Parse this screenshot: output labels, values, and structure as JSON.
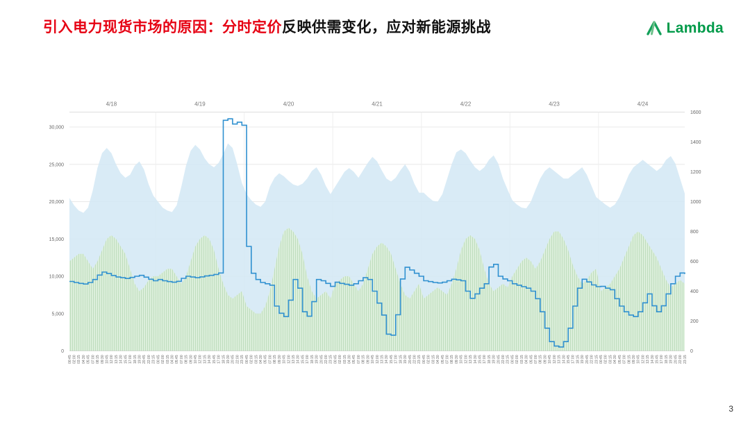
{
  "header": {
    "title_red": "引入电力现货市场的原因：分时定价",
    "title_rest": "反映供需变化，应对新能源挑战",
    "logo_text": "Lambda"
  },
  "footer": {
    "page_number": "3"
  },
  "colors": {
    "title_red": "#e60012",
    "brand_green": "#009a49",
    "price_line": "#2f90d0",
    "area_blue": "#d2e7f4",
    "area_green": "#d9edd6",
    "grid": "#e8e8e8"
  },
  "chart_data": {
    "type": "mixed",
    "title": "",
    "days": [
      "4/18",
      "4/19",
      "4/20",
      "4/21",
      "4/22",
      "4/23",
      "4/24"
    ],
    "time_ticks_per_day": [
      "00:45",
      "02:00",
      "03:15",
      "04:30",
      "05:45",
      "07:00",
      "08:15",
      "09:30",
      "10:45",
      "12:00",
      "13:15",
      "14:30",
      "15:45",
      "17:00",
      "18:15",
      "19:30",
      "20:45",
      "22:00",
      "23:15"
    ],
    "y_left": {
      "min": 0,
      "max": 32000,
      "ticks": [
        0,
        5000,
        10000,
        15000,
        20000,
        25000,
        30000
      ],
      "labels": [
        "0",
        "5,000",
        "10,000",
        "15,000",
        "20,000",
        "25,000",
        "30,000"
      ]
    },
    "y_right": {
      "min": 0,
      "max": 1600,
      "ticks": [
        0,
        200,
        400,
        600,
        800,
        1000,
        1200,
        1400,
        1600
      ],
      "labels": [
        "0",
        "200",
        "400",
        "600",
        "800",
        "1000",
        "1200",
        "1400",
        "1600"
      ]
    },
    "grid": true,
    "legend": "none",
    "series": [
      {
        "name": "load-area-blue",
        "type": "area",
        "axis": "left",
        "color": "#d2e7f4",
        "opacity": 0.85,
        "values_by_day": [
          [
            20500,
            19500,
            18800,
            18500,
            19200,
            21500,
            24500,
            26500,
            27200,
            26500,
            25000,
            23800,
            23200,
            23600,
            24800,
            25400,
            24300,
            22300,
            20800
          ],
          [
            20000,
            19200,
            18800,
            18600,
            19500,
            22000,
            24800,
            26800,
            27600,
            27000,
            25800,
            25000,
            24600,
            25200,
            26400,
            27800,
            27200,
            25000,
            22500
          ],
          [
            21000,
            20200,
            19600,
            19300,
            20000,
            22000,
            23200,
            23800,
            23400,
            22800,
            22300,
            22100,
            22400,
            23100,
            24100,
            24600,
            23600,
            22100,
            21000
          ],
          [
            22000,
            23000,
            24000,
            24500,
            24000,
            23200,
            24200,
            25200,
            26000,
            25400,
            24200,
            23100,
            22700,
            23200,
            24200,
            25000,
            24000,
            22400,
            21200
          ],
          [
            21200,
            20600,
            20100,
            20000,
            21000,
            23000,
            25000,
            26600,
            27000,
            26500,
            25500,
            24600,
            24100,
            24600,
            25600,
            26200,
            25100,
            23100,
            21600
          ],
          [
            20200,
            19600,
            19200,
            19100,
            20000,
            21600,
            23100,
            24100,
            24600,
            24100,
            23600,
            23100,
            23100,
            23600,
            24100,
            24600,
            23600,
            22100,
            20600
          ],
          [
            20100,
            19600,
            19200,
            19600,
            20600,
            22100,
            23600,
            24600,
            25100,
            25600,
            25100,
            24600,
            24100,
            24600,
            25600,
            26100,
            25100,
            23100,
            21100
          ]
        ]
      },
      {
        "name": "renewable-area-green",
        "type": "area",
        "axis": "left",
        "color": "#d9edd6",
        "opacity": 0.9,
        "texture": "stripes",
        "values_by_day": [
          [
            12000,
            12500,
            13000,
            13000,
            12000,
            11000,
            12000,
            13500,
            15000,
            15500,
            15000,
            14000,
            13000,
            11000,
            9000,
            8000,
            8500,
            9500,
            10000
          ],
          [
            10000,
            10500,
            11000,
            11000,
            10000,
            9000,
            10000,
            12000,
            14000,
            15000,
            15500,
            15000,
            13500,
            11000,
            9000,
            7500,
            7000,
            7500,
            8000
          ],
          [
            6000,
            5500,
            5000,
            5000,
            6000,
            8000,
            11000,
            14000,
            16000,
            16500,
            16000,
            15000,
            13000,
            10000,
            8000,
            7000,
            7500,
            8000,
            7000
          ],
          [
            9000,
            9500,
            10000,
            10000,
            9000,
            8000,
            9000,
            11000,
            13000,
            14000,
            14500,
            14000,
            13000,
            11000,
            9000,
            7500,
            7000,
            8000,
            9000
          ],
          [
            7000,
            7500,
            8000,
            8500,
            8000,
            7500,
            9000,
            11000,
            13500,
            15000,
            15500,
            15000,
            13500,
            11000,
            9000,
            8000,
            8500,
            9000,
            8500
          ],
          [
            10000,
            11000,
            12000,
            12500,
            12000,
            11000,
            12000,
            13500,
            15000,
            16000,
            16000,
            15000,
            13500,
            11500,
            10000,
            9000,
            9500,
            10500,
            11000
          ],
          [
            8000,
            8500,
            9000,
            10000,
            11000,
            12500,
            14000,
            15500,
            16000,
            15500,
            14500,
            13500,
            12500,
            11000,
            9500,
            8500,
            9000,
            9500,
            9000
          ]
        ]
      },
      {
        "name": "price-step-line",
        "type": "step",
        "axis": "right",
        "color": "#2f90d0",
        "opacity": 1,
        "values_by_day": [
          [
            465,
            458,
            452,
            448,
            458,
            478,
            508,
            528,
            518,
            505,
            495,
            490,
            485,
            492,
            500,
            506,
            494,
            480,
            470
          ],
          [
            478,
            470,
            464,
            460,
            466,
            486,
            500,
            495,
            490,
            496,
            502,
            506,
            512,
            522,
            1545,
            1555,
            1520,
            1532,
            1512
          ],
          [
            700,
            520,
            478,
            458,
            450,
            440,
            300,
            252,
            230,
            340,
            478,
            420,
            262,
            232,
            330,
            478,
            470,
            452,
            432
          ],
          [
            460,
            452,
            446,
            440,
            450,
            470,
            490,
            478,
            400,
            320,
            240,
            112,
            105,
            242,
            482,
            560,
            542,
            520,
            500
          ],
          [
            470,
            464,
            458,
            455,
            460,
            470,
            480,
            476,
            470,
            400,
            352,
            382,
            420,
            450,
            562,
            580,
            500,
            482,
            470
          ],
          [
            450,
            440,
            430,
            420,
            400,
            350,
            262,
            152,
            62,
            32,
            26,
            62,
            152,
            300,
            420,
            480,
            462,
            442,
            430
          ],
          [
            432,
            420,
            410,
            350,
            300,
            262,
            240,
            230,
            262,
            322,
            382,
            302,
            262,
            302,
            382,
            450,
            500,
            522,
            515
          ]
        ]
      }
    ]
  }
}
